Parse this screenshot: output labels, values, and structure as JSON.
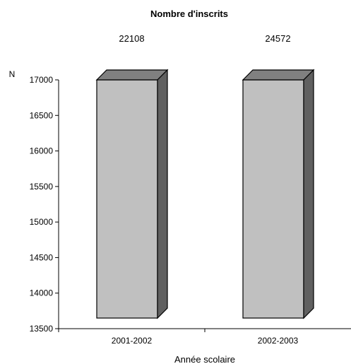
{
  "chart_data": {
    "type": "bar",
    "title": "Nombre d'inscrits",
    "xlabel": "Année scolaire",
    "ylabel": "N",
    "categories": [
      "2001-2002",
      "2002-2003"
    ],
    "values": [
      22108,
      24572
    ],
    "data_labels": [
      "22108",
      "24572"
    ],
    "ylim": [
      13500,
      17000
    ],
    "yticks": [
      13500,
      14000,
      14500,
      15000,
      15500,
      16000,
      16500,
      17000
    ],
    "grid": false,
    "legend": "none",
    "style": "3d-box",
    "colors": {
      "front": "#c0c0c0",
      "top": "#808080",
      "side": "#606060",
      "outline": "#000000"
    }
  }
}
